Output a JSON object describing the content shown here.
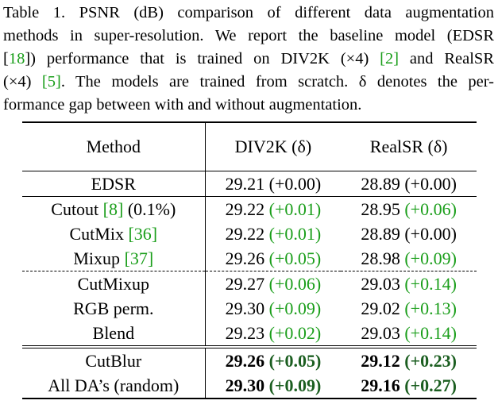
{
  "caption": {
    "lines": [
      [
        "Table 1. PSNR (dB) comparison of different data augmentation"
      ],
      [
        "methods in super-resolution. We report the baseline model (EDSR"
      ],
      [
        "",
        "[18]",
        "]) performance that is trained on DIV2K (×4) ",
        "[2]",
        " and RealSR"
      ],
      [
        "(×4) ",
        "[5]",
        ". The models are trained from scratch. δ denotes the per-"
      ],
      [
        "formance gap between with and without augmentation."
      ]
    ]
  },
  "table": {
    "headers": [
      "Method",
      "DIV2K (δ)",
      "RealSR (δ)"
    ],
    "rows": [
      {
        "method": "EDSR",
        "method_cite": "",
        "method_suffix": "",
        "div2k": "29.21",
        "div2k_delta": "(+0.00)",
        "realsr": "28.89",
        "realsr_delta": "(+0.00)"
      },
      {
        "method": "Cutout ",
        "method_cite": "[8]",
        "method_suffix": " (0.1%)",
        "div2k": "29.22",
        "div2k_delta": "(+0.01)",
        "realsr": "28.95",
        "realsr_delta": "(+0.06)"
      },
      {
        "method": "CutMix ",
        "method_cite": "[36]",
        "method_suffix": "",
        "div2k": "29.22",
        "div2k_delta": "(+0.01)",
        "realsr": "28.89",
        "realsr_delta": "(+0.00)"
      },
      {
        "method": "Mixup ",
        "method_cite": "[37]",
        "method_suffix": "",
        "div2k": "29.26",
        "div2k_delta": "(+0.05)",
        "realsr": "28.98",
        "realsr_delta": "(+0.09)"
      },
      {
        "method": "CutMixup",
        "method_cite": "",
        "method_suffix": "",
        "div2k": "29.27",
        "div2k_delta": "(+0.06)",
        "realsr": "29.03",
        "realsr_delta": "(+0.14)"
      },
      {
        "method": "RGB perm.",
        "method_cite": "",
        "method_suffix": "",
        "div2k": "29.30",
        "div2k_delta": "(+0.09)",
        "realsr": "29.02",
        "realsr_delta": "(+0.13)"
      },
      {
        "method": "Blend",
        "method_cite": "",
        "method_suffix": "",
        "div2k": "29.23",
        "div2k_delta": "(+0.02)",
        "realsr": "29.03",
        "realsr_delta": "(+0.14)"
      },
      {
        "method": "CutBlur",
        "method_cite": "",
        "method_suffix": "",
        "div2k": "29.26",
        "div2k_delta": "(+0.05)",
        "realsr": "29.12",
        "realsr_delta": "(+0.23)"
      },
      {
        "method": "All DA’s (random)",
        "method_cite": "",
        "method_suffix": "",
        "div2k": "29.30",
        "div2k_delta": "(+0.09)",
        "realsr": "29.16",
        "realsr_delta": "(+0.27)"
      }
    ]
  }
}
